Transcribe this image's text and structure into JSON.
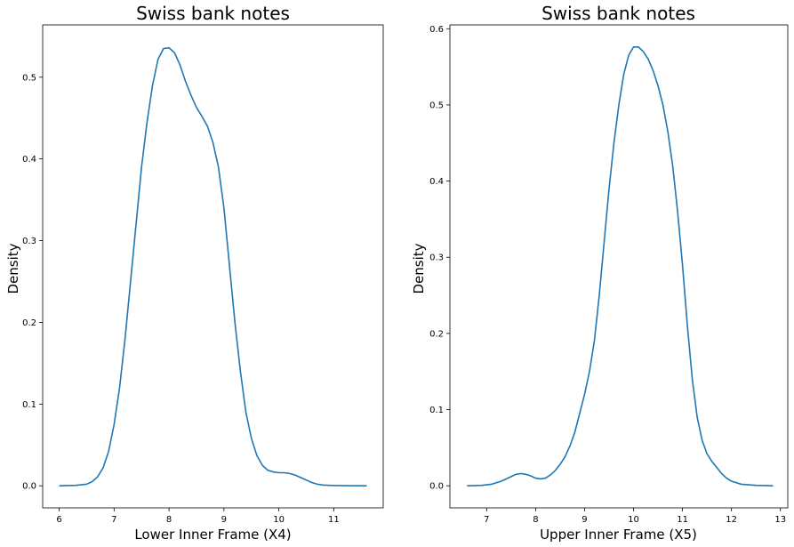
{
  "chart_data": [
    {
      "type": "line",
      "title": "Swiss bank notes",
      "xlabel": "Lower Inner Frame (X4)",
      "ylabel": "Density",
      "xlim": [
        5.7,
        11.9
      ],
      "ylim": [
        -0.027,
        0.564
      ],
      "xticks": [
        6,
        7,
        8,
        9,
        10,
        11
      ],
      "yticks": [
        0.0,
        0.1,
        0.2,
        0.3,
        0.4,
        0.5
      ],
      "ytick_labels": [
        "0.0",
        "0.1",
        "0.2",
        "0.3",
        "0.4",
        "0.5"
      ],
      "grid": false,
      "color": "#1f77b4",
      "x": [
        6.0,
        6.3,
        6.5,
        6.6,
        6.7,
        6.8,
        6.9,
        7.0,
        7.1,
        7.2,
        7.3,
        7.4,
        7.5,
        7.6,
        7.7,
        7.8,
        7.9,
        8.0,
        8.1,
        8.2,
        8.3,
        8.4,
        8.5,
        8.6,
        8.7,
        8.8,
        8.9,
        9.0,
        9.1,
        9.2,
        9.3,
        9.4,
        9.5,
        9.6,
        9.7,
        9.8,
        9.9,
        10.0,
        10.1,
        10.2,
        10.3,
        10.4,
        10.5,
        10.6,
        10.7,
        10.8,
        11.0,
        11.3,
        11.6
      ],
      "y": [
        0.0,
        0.0005,
        0.002,
        0.005,
        0.011,
        0.022,
        0.042,
        0.075,
        0.12,
        0.18,
        0.25,
        0.32,
        0.39,
        0.445,
        0.49,
        0.522,
        0.535,
        0.536,
        0.53,
        0.515,
        0.495,
        0.478,
        0.463,
        0.452,
        0.44,
        0.42,
        0.39,
        0.34,
        0.27,
        0.2,
        0.14,
        0.09,
        0.058,
        0.037,
        0.025,
        0.019,
        0.017,
        0.016,
        0.016,
        0.015,
        0.013,
        0.01,
        0.007,
        0.004,
        0.002,
        0.001,
        0.0003,
        0.0001,
        0.0
      ]
    },
    {
      "type": "line",
      "title": "Swiss bank notes",
      "xlabel": "Upper Inner Frame (X5)",
      "ylabel": "Density",
      "xlim": [
        6.25,
        13.15
      ],
      "ylim": [
        -0.029,
        0.605
      ],
      "xticks": [
        7,
        8,
        9,
        10,
        11,
        12,
        13
      ],
      "yticks": [
        0.0,
        0.1,
        0.2,
        0.3,
        0.4,
        0.5,
        0.6
      ],
      "ytick_labels": [
        "0.0",
        "0.1",
        "0.2",
        "0.3",
        "0.4",
        "0.5",
        "0.6"
      ],
      "grid": false,
      "color": "#1f77b4",
      "x": [
        6.6,
        6.9,
        7.1,
        7.3,
        7.5,
        7.6,
        7.7,
        7.8,
        7.9,
        8.0,
        8.1,
        8.2,
        8.3,
        8.4,
        8.5,
        8.6,
        8.7,
        8.8,
        8.9,
        9.0,
        9.1,
        9.2,
        9.3,
        9.4,
        9.5,
        9.6,
        9.7,
        9.8,
        9.9,
        10.0,
        10.1,
        10.2,
        10.3,
        10.4,
        10.5,
        10.6,
        10.7,
        10.8,
        10.9,
        11.0,
        11.1,
        11.2,
        11.3,
        11.4,
        11.5,
        11.6,
        11.7,
        11.8,
        11.9,
        12.0,
        12.2,
        12.5,
        12.85
      ],
      "y": [
        0.0,
        0.0005,
        0.002,
        0.006,
        0.012,
        0.015,
        0.016,
        0.015,
        0.013,
        0.01,
        0.009,
        0.01,
        0.014,
        0.02,
        0.028,
        0.038,
        0.052,
        0.07,
        0.095,
        0.12,
        0.15,
        0.19,
        0.25,
        0.32,
        0.39,
        0.45,
        0.5,
        0.54,
        0.565,
        0.576,
        0.576,
        0.57,
        0.56,
        0.545,
        0.525,
        0.5,
        0.465,
        0.42,
        0.36,
        0.29,
        0.21,
        0.14,
        0.09,
        0.06,
        0.042,
        0.032,
        0.024,
        0.016,
        0.01,
        0.006,
        0.002,
        0.0005,
        0.0
      ]
    }
  ]
}
